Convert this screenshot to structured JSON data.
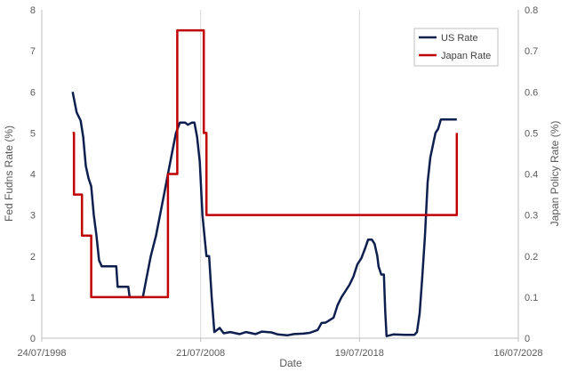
{
  "chart_data": {
    "type": "line",
    "xlabel": "Date",
    "ylabel_left": "Fed Fudns Rate (%)",
    "ylabel_right": "Japan Policy Rate (%)",
    "x_range": [
      "1998-07-24",
      "2028-07-16"
    ],
    "x_ticks": [
      "24/07/1998",
      "21/07/2008",
      "19/07/2018",
      "16/07/2028"
    ],
    "ylim_left": [
      0,
      8
    ],
    "ylim_right": [
      0,
      0.8
    ],
    "y_ticks_left": [
      "0",
      "1",
      "2",
      "3",
      "4",
      "5",
      "6",
      "7",
      "8"
    ],
    "y_ticks_right": [
      "0",
      "0.1",
      "0.2",
      "0.3",
      "0.4",
      "0.5",
      "0.6",
      "0.7",
      "0.8"
    ],
    "grid": "vertical",
    "legend": "top-right",
    "series": [
      {
        "name": "US Rate",
        "axis": "left",
        "color": "#0d1f4f",
        "points": [
          [
            "2000-07-01",
            6.0
          ],
          [
            "2000-10-01",
            5.5
          ],
          [
            "2001-01-01",
            5.3
          ],
          [
            "2001-03-01",
            4.9
          ],
          [
            "2001-05-01",
            4.2
          ],
          [
            "2001-07-01",
            3.9
          ],
          [
            "2001-09-01",
            3.7
          ],
          [
            "2001-11-01",
            3.0
          ],
          [
            "2002-01-01",
            2.5
          ],
          [
            "2002-03-01",
            1.9
          ],
          [
            "2002-05-01",
            1.75
          ],
          [
            "2002-09-01",
            1.75
          ],
          [
            "2003-01-01",
            1.75
          ],
          [
            "2003-04-01",
            1.75
          ],
          [
            "2003-05-01",
            1.25
          ],
          [
            "2003-09-01",
            1.25
          ],
          [
            "2004-01-01",
            1.25
          ],
          [
            "2004-02-01",
            1.0
          ],
          [
            "2004-08-01",
            1.0
          ],
          [
            "2004-12-01",
            1.0
          ],
          [
            "2005-03-01",
            1.5
          ],
          [
            "2005-06-01",
            2.0
          ],
          [
            "2005-10-01",
            2.5
          ],
          [
            "2006-01-01",
            3.0
          ],
          [
            "2006-04-01",
            3.5
          ],
          [
            "2006-07-01",
            4.0
          ],
          [
            "2006-10-01",
            4.5
          ],
          [
            "2007-01-01",
            5.0
          ],
          [
            "2007-04-01",
            5.25
          ],
          [
            "2007-08-01",
            5.25
          ],
          [
            "2007-10-01",
            5.2
          ],
          [
            "2008-01-01",
            5.25
          ],
          [
            "2008-03-01",
            5.25
          ],
          [
            "2008-05-01",
            4.9
          ],
          [
            "2008-07-01",
            4.3
          ],
          [
            "2008-09-01",
            3.0
          ],
          [
            "2008-12-01",
            2.0
          ],
          [
            "2009-02-01",
            2.0
          ],
          [
            "2009-04-01",
            1.0
          ],
          [
            "2009-06-01",
            0.15
          ],
          [
            "2009-10-01",
            0.25
          ],
          [
            "2010-01-01",
            0.12
          ],
          [
            "2010-06-01",
            0.15
          ],
          [
            "2011-01-01",
            0.1
          ],
          [
            "2011-06-01",
            0.15
          ],
          [
            "2012-01-01",
            0.1
          ],
          [
            "2012-06-01",
            0.16
          ],
          [
            "2013-01-01",
            0.14
          ],
          [
            "2013-06-01",
            0.09
          ],
          [
            "2014-01-01",
            0.07
          ],
          [
            "2014-06-01",
            0.1
          ],
          [
            "2015-01-01",
            0.11
          ],
          [
            "2015-06-01",
            0.13
          ],
          [
            "2015-12-01",
            0.2
          ],
          [
            "2016-03-01",
            0.37
          ],
          [
            "2016-06-01",
            0.38
          ],
          [
            "2016-12-01",
            0.5
          ],
          [
            "2017-03-01",
            0.8
          ],
          [
            "2017-06-01",
            1.0
          ],
          [
            "2017-09-01",
            1.15
          ],
          [
            "2017-12-01",
            1.3
          ],
          [
            "2018-03-01",
            1.5
          ],
          [
            "2018-06-01",
            1.8
          ],
          [
            "2018-09-01",
            1.95
          ],
          [
            "2018-12-01",
            2.2
          ],
          [
            "2019-02-01",
            2.4
          ],
          [
            "2019-05-01",
            2.4
          ],
          [
            "2019-07-01",
            2.3
          ],
          [
            "2019-09-01",
            2.0
          ],
          [
            "2019-10-01",
            1.75
          ],
          [
            "2019-12-01",
            1.55
          ],
          [
            "2020-02-01",
            1.55
          ],
          [
            "2020-03-01",
            0.65
          ],
          [
            "2020-04-01",
            0.05
          ],
          [
            "2020-09-01",
            0.09
          ],
          [
            "2021-06-01",
            0.08
          ],
          [
            "2022-01-01",
            0.08
          ],
          [
            "2022-03-01",
            0.15
          ],
          [
            "2022-05-01",
            0.6
          ],
          [
            "2022-07-01",
            1.5
          ],
          [
            "2022-09-01",
            2.5
          ],
          [
            "2022-11-01",
            3.8
          ],
          [
            "2023-01-01",
            4.4
          ],
          [
            "2023-03-01",
            4.7
          ],
          [
            "2023-05-01",
            5.0
          ],
          [
            "2023-07-01",
            5.1
          ],
          [
            "2023-09-01",
            5.33
          ],
          [
            "2024-06-01",
            5.33
          ],
          [
            "2024-09-01",
            5.33
          ]
        ]
      },
      {
        "name": "Japan Rate",
        "axis": "right",
        "color": "#c00000",
        "points": [
          [
            "2000-07-01",
            0.5
          ],
          [
            "2000-08-01",
            0.5
          ],
          [
            "2000-08-01",
            0.35
          ],
          [
            "2001-02-01",
            0.35
          ],
          [
            "2001-02-01",
            0.25
          ],
          [
            "2001-03-01",
            0.25
          ],
          [
            "2001-03-01",
            0.25
          ],
          [
            "2001-09-01",
            0.25
          ],
          [
            "2001-09-01",
            0.1
          ],
          [
            "2006-07-01",
            0.1
          ],
          [
            "2006-07-01",
            0.4
          ],
          [
            "2007-02-01",
            0.4
          ],
          [
            "2007-02-01",
            0.75
          ],
          [
            "2008-10-01",
            0.75
          ],
          [
            "2008-10-01",
            0.5
          ],
          [
            "2008-12-01",
            0.5
          ],
          [
            "2008-12-01",
            0.3
          ],
          [
            "2024-09-01",
            0.3
          ],
          [
            "2024-09-01",
            0.5
          ]
        ]
      }
    ]
  }
}
